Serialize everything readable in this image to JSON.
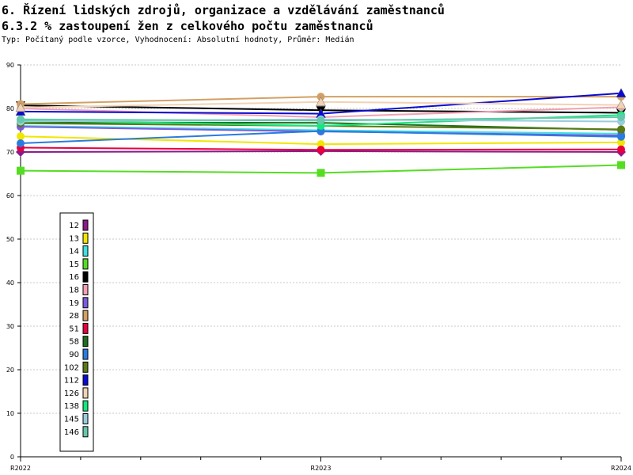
{
  "header": {
    "title": "6. Řízení lidských zdrojů, organizace a vzdělávání zaměstnanců",
    "subtitle": "6.3.2 % zastoupení žen z celkového počtu zaměstnanců",
    "meta": "Typ: Počítaný podle vzorce, Vyhodnocení: Absolutní hodnoty, Průměr: Medián"
  },
  "chart_data": {
    "type": "line",
    "x": [
      "R2022",
      "R2023",
      "R2024"
    ],
    "ylim": [
      0,
      90
    ],
    "yticks": [
      0,
      10,
      20,
      30,
      40,
      50,
      60,
      70,
      80,
      90
    ],
    "grid": true,
    "legend_position": "left",
    "series": [
      {
        "name": "12",
        "color": "#8B1A8B",
        "marker": "diamond",
        "values": [
          70.0,
          70.2,
          70.0
        ]
      },
      {
        "name": "13",
        "color": "#F2E600",
        "marker": "circle",
        "values": [
          73.6,
          71.8,
          72.2
        ]
      },
      {
        "name": "14",
        "color": "#40E0E0",
        "marker": "circle",
        "values": [
          76.0,
          75.0,
          74.2
        ]
      },
      {
        "name": "15",
        "color": "#55DD22",
        "marker": "square",
        "values": [
          65.7,
          65.2,
          67.0
        ]
      },
      {
        "name": "16",
        "color": "#000000",
        "marker": "triangle-down",
        "values": [
          80.7,
          79.6,
          79.0
        ]
      },
      {
        "name": "18",
        "color": "#F2A0B4",
        "marker": "circle",
        "values": [
          80.0,
          78.0,
          80.3
        ]
      },
      {
        "name": "19",
        "color": "#7B5BE0",
        "marker": "circle",
        "values": [
          75.8,
          74.7,
          73.8
        ]
      },
      {
        "name": "28",
        "color": "#D2A064",
        "marker": "circle",
        "values": [
          81.0,
          82.7,
          82.7
        ]
      },
      {
        "name": "51",
        "color": "#E8003C",
        "marker": "circle",
        "values": [
          71.0,
          70.5,
          70.6
        ]
      },
      {
        "name": "58",
        "color": "#1E6E1E",
        "marker": "circle",
        "values": [
          76.8,
          76.7,
          75.1
        ]
      },
      {
        "name": "90",
        "color": "#2A7BE0",
        "marker": "circle",
        "values": [
          72.0,
          74.8,
          73.5
        ]
      },
      {
        "name": "102",
        "color": "#5A7A14",
        "marker": "circle",
        "values": [
          76.6,
          76.0,
          75.2
        ]
      },
      {
        "name": "112",
        "color": "#0A0AD2",
        "marker": "triangle-up",
        "values": [
          79.3,
          78.8,
          83.5
        ]
      },
      {
        "name": "126",
        "color": "#F2D2B4",
        "marker": "triangle-up",
        "values": [
          80.2,
          81.5,
          80.8
        ]
      },
      {
        "name": "138",
        "color": "#14E87A",
        "marker": "circle",
        "values": [
          77.3,
          76.0,
          78.5
        ]
      },
      {
        "name": "145",
        "color": "#9ACCDC",
        "marker": "circle",
        "values": [
          77.0,
          77.5,
          77.0
        ]
      },
      {
        "name": "146",
        "color": "#64C8AA",
        "marker": "circle",
        "values": [
          77.5,
          77.2,
          78.0
        ]
      }
    ]
  }
}
